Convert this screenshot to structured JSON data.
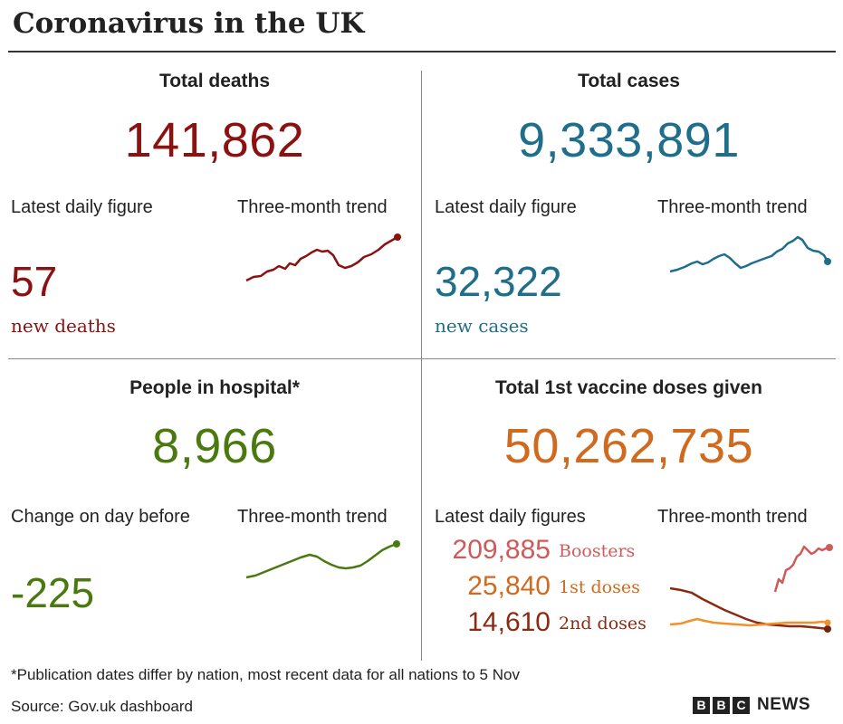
{
  "title": "Coronavirus in the UK",
  "colors": {
    "deaths": "#8c1111",
    "cases": "#1e6e8c",
    "hospital": "#4a7a0f",
    "vaccine": "#cf6a1e",
    "boosters": "#d05a5a",
    "second_doses": "#8a2a12",
    "first_doses_line": "#f2902a"
  },
  "deaths": {
    "heading": "Total deaths",
    "total": "141,862",
    "daily_label": "Latest daily figure",
    "trend_label": "Three-month trend",
    "daily_value": "57",
    "daily_unit": "new deaths"
  },
  "cases": {
    "heading": "Total cases",
    "total": "9,333,891",
    "daily_label": "Latest daily figure",
    "trend_label": "Three-month trend",
    "daily_value": "32,322",
    "daily_unit": "new cases"
  },
  "hospital": {
    "heading": "People in hospital*",
    "total": "8,966",
    "change_label": "Change on day before",
    "trend_label": "Three-month trend",
    "change_value": "-225"
  },
  "vaccine": {
    "heading": "Total 1st vaccine doses given",
    "total": "50,262,735",
    "daily_label": "Latest daily figures",
    "trend_label": "Three-month trend",
    "doses": [
      {
        "value": "209,885",
        "label": "Boosters"
      },
      {
        "value": "25,840",
        "label": "1st doses"
      },
      {
        "value": "14,610",
        "label": "2nd doses"
      }
    ]
  },
  "footnote": "*Publication dates differ by nation, most recent data for all nations to 5 Nov",
  "source": "Source: Gov.uk dashboard",
  "logo": {
    "letters": [
      "B",
      "B",
      "C"
    ],
    "word": "NEWS"
  }
}
